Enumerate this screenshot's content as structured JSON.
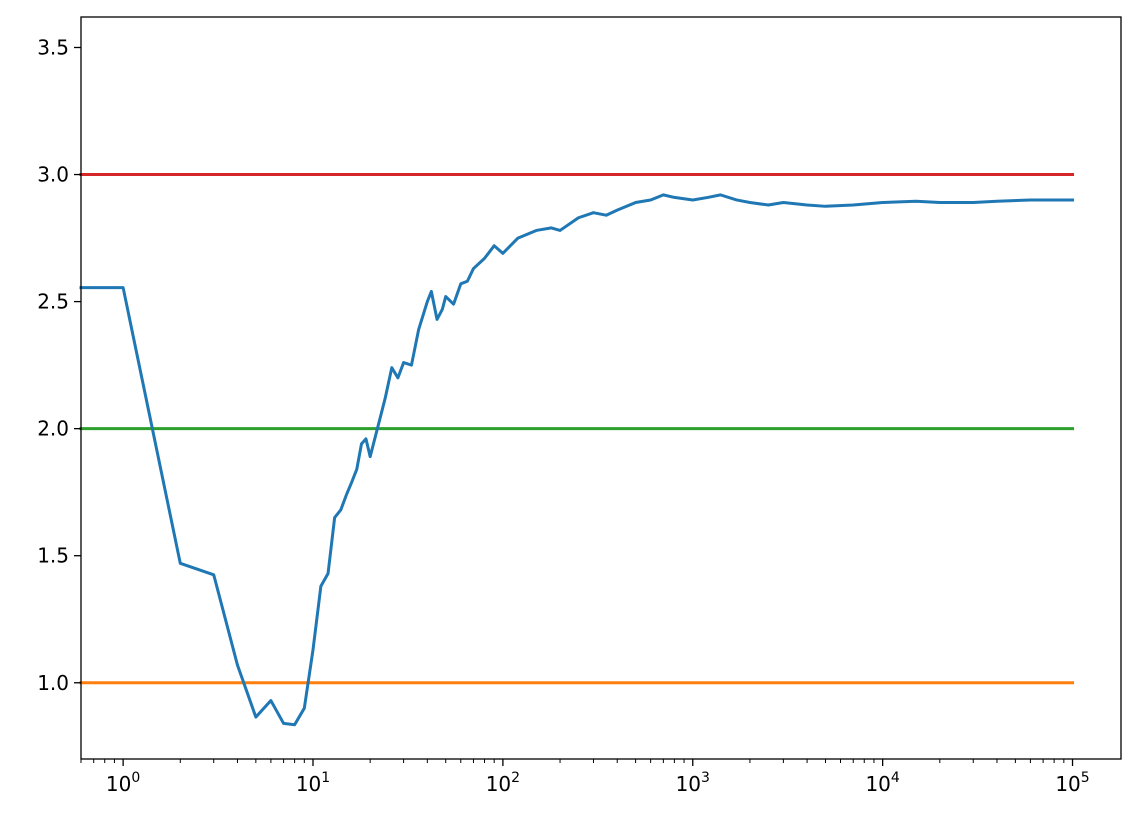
{
  "chart_data": {
    "type": "line",
    "title": "",
    "xlabel": "",
    "ylabel": "",
    "xscale": "log",
    "xlim": [
      0.6,
      180000
    ],
    "ylim": [
      0.7,
      3.62
    ],
    "grid": false,
    "legend": "none",
    "x_ticks": [
      {
        "value": 1,
        "base": "10",
        "exp": "0"
      },
      {
        "value": 10,
        "base": "10",
        "exp": "1"
      },
      {
        "value": 100,
        "base": "10",
        "exp": "2"
      },
      {
        "value": 1000,
        "base": "10",
        "exp": "3"
      },
      {
        "value": 10000,
        "base": "10",
        "exp": "4"
      },
      {
        "value": 100000,
        "base": "10",
        "exp": "5"
      }
    ],
    "y_ticks": [
      {
        "value": 1.0,
        "label": "1.0"
      },
      {
        "value": 1.5,
        "label": "1.5"
      },
      {
        "value": 2.0,
        "label": "2.0"
      },
      {
        "value": 2.5,
        "label": "2.5"
      },
      {
        "value": 3.0,
        "label": "3.0"
      },
      {
        "value": 3.5,
        "label": "3.5"
      }
    ],
    "series": [
      {
        "color": "#1f77b4",
        "x": [
          0.6,
          1,
          2,
          3,
          4,
          5,
          6,
          7,
          8,
          9,
          10,
          11,
          12,
          13,
          14,
          15,
          16,
          17,
          18,
          19,
          20,
          22,
          24,
          26,
          28,
          30,
          33,
          36,
          40,
          42,
          45,
          48,
          50,
          55,
          60,
          65,
          70,
          80,
          90,
          100,
          120,
          150,
          180,
          200,
          250,
          300,
          350,
          400,
          500,
          600,
          700,
          800,
          1000,
          1200,
          1400,
          1700,
          2000,
          2500,
          3000,
          4000,
          5000,
          7000,
          10000,
          15000,
          20000,
          30000,
          40000,
          60000,
          80000,
          100000
        ],
        "y": [
          2.555,
          2.555,
          1.47,
          1.425,
          1.07,
          0.865,
          0.93,
          0.84,
          0.835,
          0.9,
          1.13,
          1.38,
          1.43,
          1.65,
          1.68,
          1.74,
          1.79,
          1.84,
          1.94,
          1.96,
          1.89,
          2.01,
          2.12,
          2.24,
          2.2,
          2.26,
          2.25,
          2.39,
          2.5,
          2.54,
          2.43,
          2.47,
          2.52,
          2.49,
          2.57,
          2.58,
          2.63,
          2.67,
          2.72,
          2.69,
          2.75,
          2.78,
          2.79,
          2.78,
          2.83,
          2.85,
          2.84,
          2.86,
          2.89,
          2.9,
          2.92,
          2.91,
          2.9,
          2.91,
          2.92,
          2.9,
          2.89,
          2.88,
          2.89,
          2.88,
          2.875,
          2.88,
          2.89,
          2.895,
          2.89,
          2.89,
          2.895,
          2.9,
          2.9,
          2.9
        ]
      },
      {
        "color": "#ff7f0e",
        "x": [
          0.6,
          100000
        ],
        "y": [
          1.0,
          1.0
        ]
      },
      {
        "color": "#2ca02c",
        "x": [
          0.6,
          100000
        ],
        "y": [
          2.0,
          2.0
        ]
      },
      {
        "color": "#d62728",
        "x": [
          0.6,
          100000
        ],
        "y": [
          3.0,
          3.0
        ]
      }
    ]
  }
}
